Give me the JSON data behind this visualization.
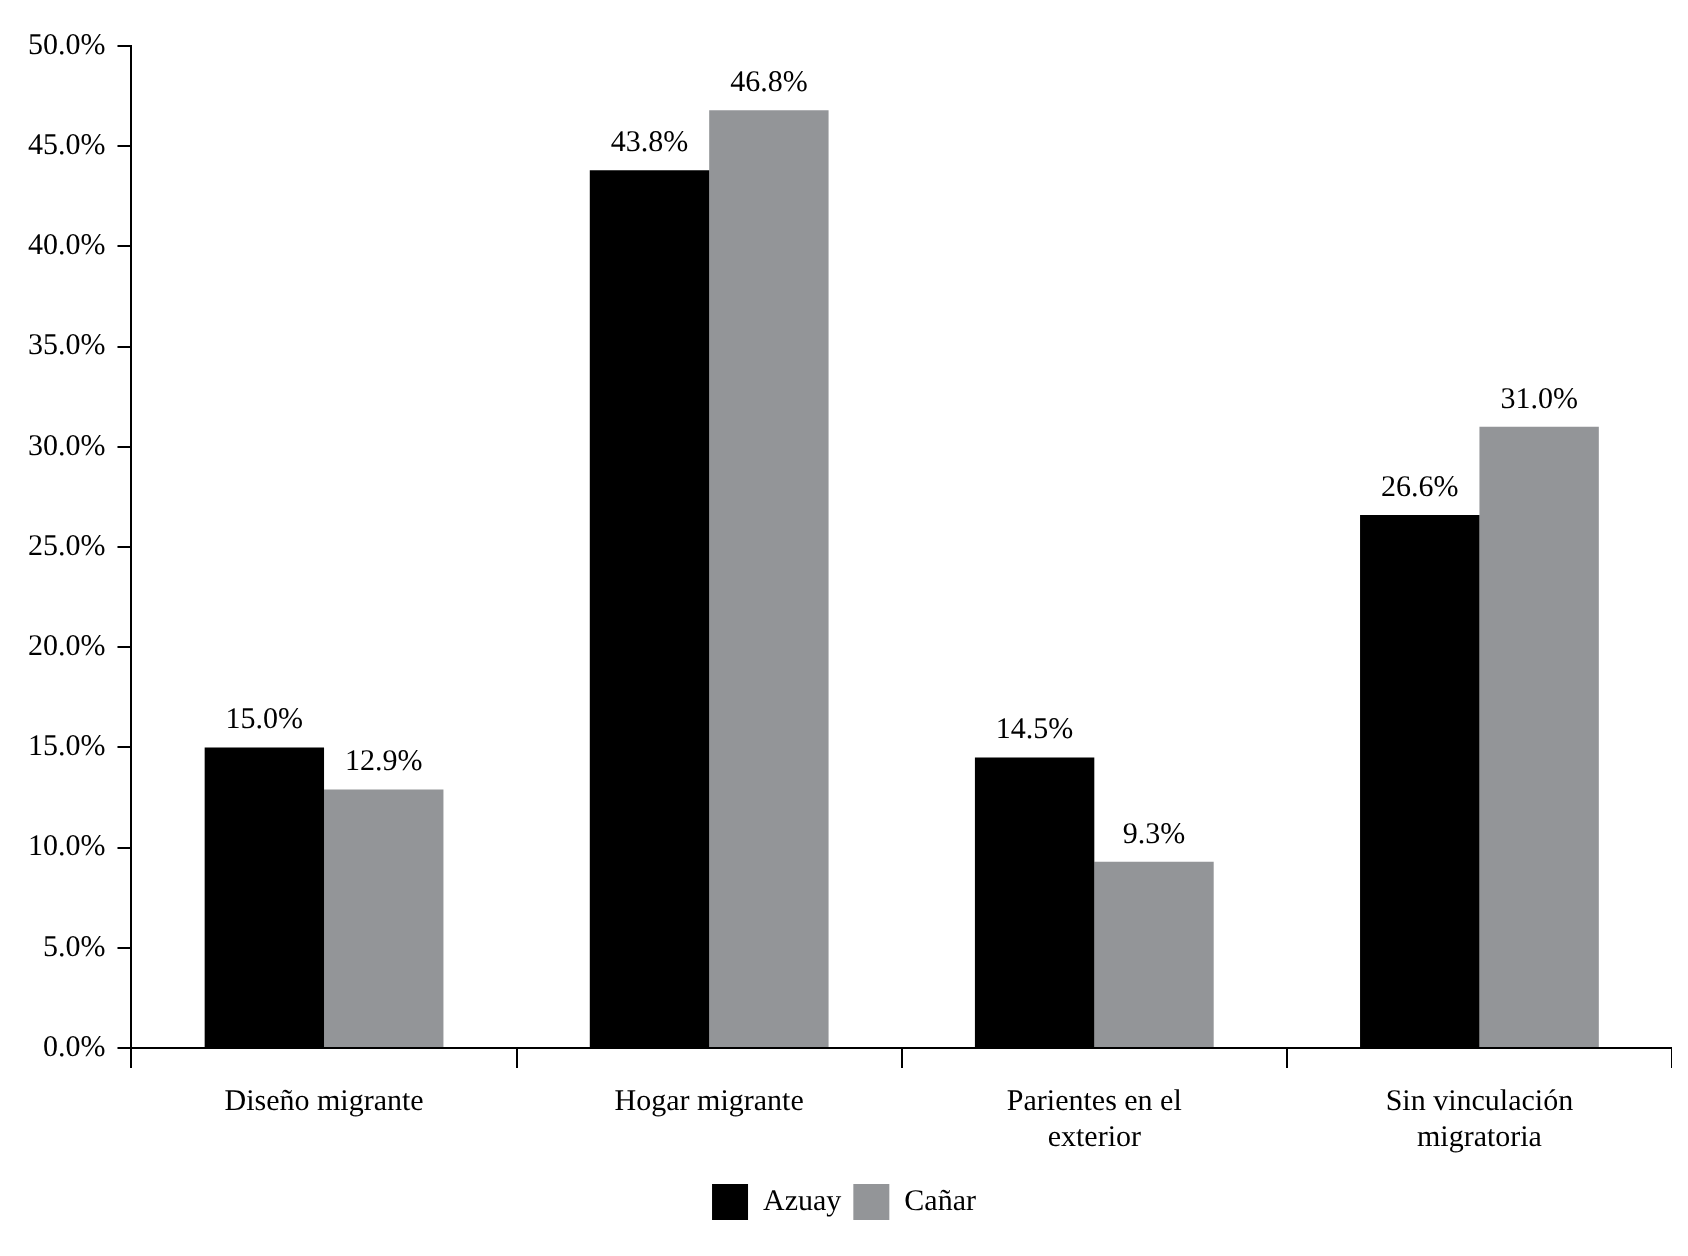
{
  "chart_data": {
    "type": "bar",
    "categories": [
      "Diseño migrante",
      "Hogar migrante",
      "Parientes en el exterior",
      "Sin vinculación migratoria"
    ],
    "series": [
      {
        "name": "Azuay",
        "color": "#000000",
        "values": [
          15.0,
          43.8,
          14.5,
          26.6
        ],
        "value_labels": [
          "15.0%",
          "43.8%",
          "14.5%",
          "26.6%"
        ]
      },
      {
        "name": "Cañar",
        "color": "#939598",
        "values": [
          12.9,
          46.8,
          9.3,
          31.0
        ],
        "value_labels": [
          "12.9%",
          "46.8%",
          "9.3%",
          "31.0%"
        ]
      }
    ],
    "ylim": [
      0,
      50
    ],
    "yticks": [
      {
        "value": 0,
        "label": "0.0%"
      },
      {
        "value": 5,
        "label": "5.0%"
      },
      {
        "value": 10,
        "label": "10.0%"
      },
      {
        "value": 15,
        "label": "15.0%"
      },
      {
        "value": 20,
        "label": "20.0%"
      },
      {
        "value": 25,
        "label": "25.0%"
      },
      {
        "value": 30,
        "label": "30.0%"
      },
      {
        "value": 35,
        "label": "35.0%"
      },
      {
        "value": 40,
        "label": "40.0%"
      },
      {
        "value": 45,
        "label": "45.0%"
      },
      {
        "value": 50,
        "label": "50.0%"
      }
    ],
    "legend": "bottom"
  }
}
